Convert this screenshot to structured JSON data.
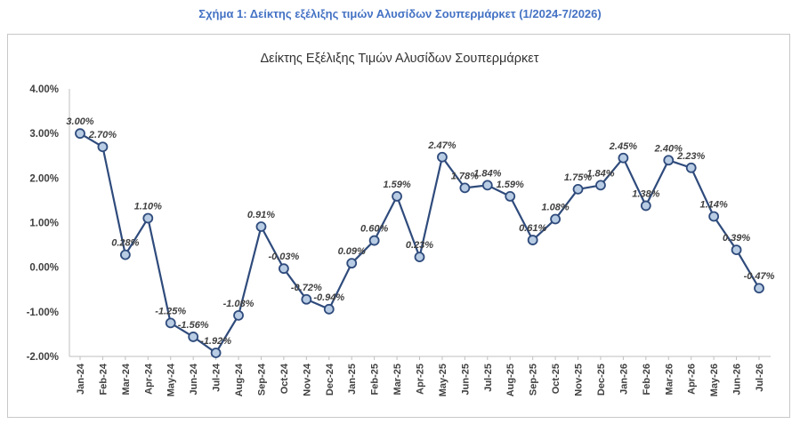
{
  "caption": "Σχήμα 1: Δείκτης εξέλιξης τιμών Αλυσίδων Σουπερμάρκετ (1/2024-7/2026)",
  "chart_data": {
    "type": "line",
    "title": "Δείκτης Εξέλιξης Τιμών Αλυσίδων Σουπερμάρκετ",
    "xlabel": "",
    "ylabel": "",
    "ylim": [
      -2,
      4
    ],
    "yticks": [
      "4.00%",
      "3.00%",
      "2.00%",
      "1.00%",
      "0.00%",
      "-1.00%",
      "-2.00%"
    ],
    "ytick_values": [
      4,
      3,
      2,
      1,
      0,
      -1,
      -2
    ],
    "grid": false,
    "legend": "none",
    "line_color": "#2f4b7c",
    "marker_fill": "#b8cce4",
    "categories": [
      "Jan-24",
      "Feb-24",
      "Mar-24",
      "Apr-24",
      "May-24",
      "Jun-24",
      "Jul-24",
      "Aug-24",
      "Sep-24",
      "Oct-24",
      "Nov-24",
      "Dec-24",
      "Jan-25",
      "Feb-25",
      "Mar-25",
      "Apr-25",
      "May-25",
      "Jun-25",
      "Jul-25",
      "Aug-25",
      "Sep-25",
      "Oct-25",
      "Nov-25",
      "Dec-25",
      "Jan-26",
      "Feb-26",
      "Mar-26",
      "Apr-26",
      "May-26",
      "Jun-26",
      "Jul-26"
    ],
    "values": [
      3.0,
      2.7,
      0.28,
      1.1,
      -1.25,
      -1.56,
      -1.92,
      -1.08,
      0.91,
      -0.03,
      -0.72,
      -0.94,
      0.09,
      0.6,
      1.59,
      0.23,
      2.47,
      1.78,
      1.84,
      1.59,
      0.61,
      1.08,
      1.75,
      1.84,
      2.45,
      1.38,
      2.4,
      2.23,
      1.14,
      0.39,
      -0.47
    ],
    "data_labels": [
      "3.00%",
      "2.70%",
      "0.28%",
      "1.10%",
      "-1.25%",
      "-1.56%",
      "-1.92%",
      "-1.08%",
      "0.91%",
      "-0.03%",
      "-0.72%",
      "-0.94%",
      "0.09%",
      "0.60%",
      "1.59%",
      "0.23%",
      "2.47%",
      "1.78%",
      "1.84%",
      "1.59%",
      "0.61%",
      "1.08%",
      "1.75%",
      "1.84%",
      "2.45%",
      "1.38%",
      "2.40%",
      "2.23%",
      "1.14%",
      "0.39%",
      "-0.47%"
    ]
  }
}
